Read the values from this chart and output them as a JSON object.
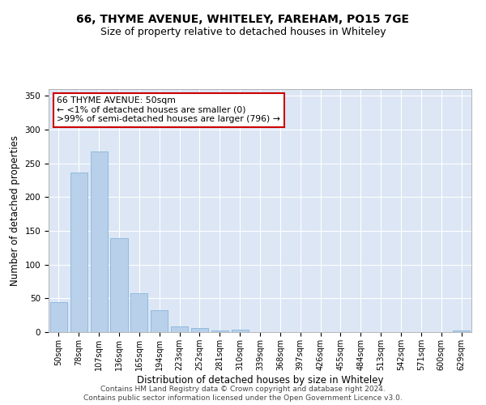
{
  "title": "66, THYME AVENUE, WHITELEY, FAREHAM, PO15 7GE",
  "subtitle": "Size of property relative to detached houses in Whiteley",
  "xlabel": "Distribution of detached houses by size in Whiteley",
  "ylabel": "Number of detached properties",
  "bins": [
    "50sqm",
    "78sqm",
    "107sqm",
    "136sqm",
    "165sqm",
    "194sqm",
    "223sqm",
    "252sqm",
    "281sqm",
    "310sqm",
    "339sqm",
    "368sqm",
    "397sqm",
    "426sqm",
    "455sqm",
    "484sqm",
    "513sqm",
    "542sqm",
    "571sqm",
    "600sqm",
    "629sqm"
  ],
  "values": [
    45,
    237,
    268,
    139,
    58,
    32,
    9,
    6,
    3,
    4,
    0,
    0,
    0,
    0,
    0,
    0,
    0,
    0,
    0,
    0,
    3
  ],
  "bar_color": "#b8d0ea",
  "bar_edge_color": "#7aaed6",
  "annotation_title": "66 THYME AVENUE: 50sqm",
  "annotation_line1": "← <1% of detached houses are smaller (0)",
  "annotation_line2": ">99% of semi-detached houses are larger (796) →",
  "annotation_box_facecolor": "#ffffff",
  "annotation_box_edgecolor": "#cc0000",
  "ylim": [
    0,
    360
  ],
  "yticks": [
    0,
    50,
    100,
    150,
    200,
    250,
    300,
    350
  ],
  "footer1": "Contains HM Land Registry data © Crown copyright and database right 2024.",
  "footer2": "Contains public sector information licensed under the Open Government Licence v3.0.",
  "plot_bg_color": "#dce6f5",
  "title_fontsize": 10,
  "subtitle_fontsize": 9,
  "tick_fontsize": 7,
  "ylabel_fontsize": 8.5,
  "xlabel_fontsize": 8.5,
  "annotation_fontsize": 7.8,
  "footer_fontsize": 6.5
}
